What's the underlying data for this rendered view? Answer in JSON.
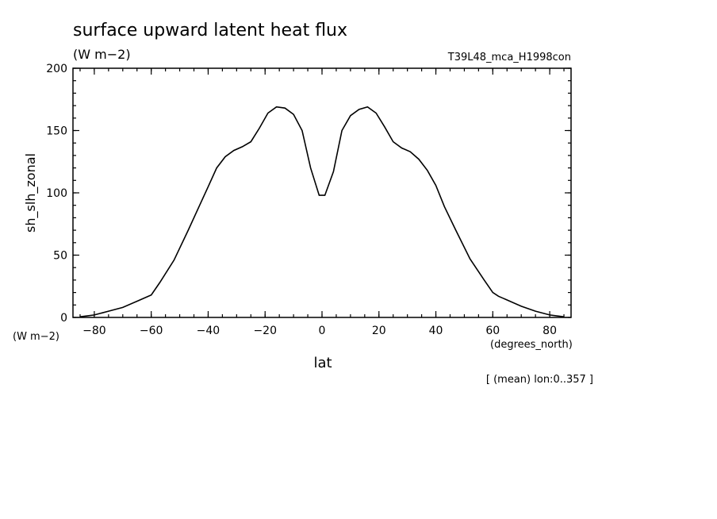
{
  "title": "surface upward latent heat flux",
  "units": "(W m−2)",
  "run_name": "T39L48_mca_H1998con",
  "ylabel": "sh_slh_zonal",
  "yunits": "(W m−2)",
  "xlabel": "lat",
  "xunits": "(degrees_north)",
  "footnote": "[ (mean) lon:0..357 ]",
  "chart_data": {
    "type": "line",
    "title": "surface upward latent heat flux",
    "xlabel": "lat",
    "ylabel": "sh_slh_zonal",
    "xlim": [
      -87.5,
      87.5
    ],
    "ylim": [
      0,
      200
    ],
    "x_ticks": [
      -80,
      -60,
      -40,
      -20,
      0,
      20,
      40,
      60,
      80
    ],
    "y_ticks": [
      0,
      50,
      100,
      150,
      200
    ],
    "grid": false,
    "series": [
      {
        "line_color": "#000000",
        "x": [
          -85,
          -80,
          -75,
          -70,
          -65,
          -62,
          -60,
          -57,
          -52,
          -47,
          -43,
          -40,
          -37,
          -34,
          -31,
          -28,
          -25,
          -22,
          -19,
          -16,
          -13,
          -10,
          -7,
          -4,
          -1,
          1,
          4,
          7,
          10,
          13,
          16,
          19,
          22,
          25,
          28,
          31,
          34,
          37,
          40,
          43,
          47,
          52,
          57,
          60,
          62,
          65,
          70,
          75,
          80,
          85
        ],
        "y": [
          0.5,
          2,
          5,
          8,
          13,
          16,
          18,
          28,
          46,
          70,
          90,
          105,
          120,
          129,
          134,
          137,
          141,
          152,
          164,
          169,
          168,
          163,
          150,
          120,
          98,
          98,
          117,
          150,
          162,
          167,
          169,
          164,
          153,
          141,
          136,
          133,
          127,
          118,
          106,
          89,
          70,
          47,
          30,
          20,
          17,
          14,
          9,
          5,
          2,
          0.5
        ]
      }
    ]
  }
}
